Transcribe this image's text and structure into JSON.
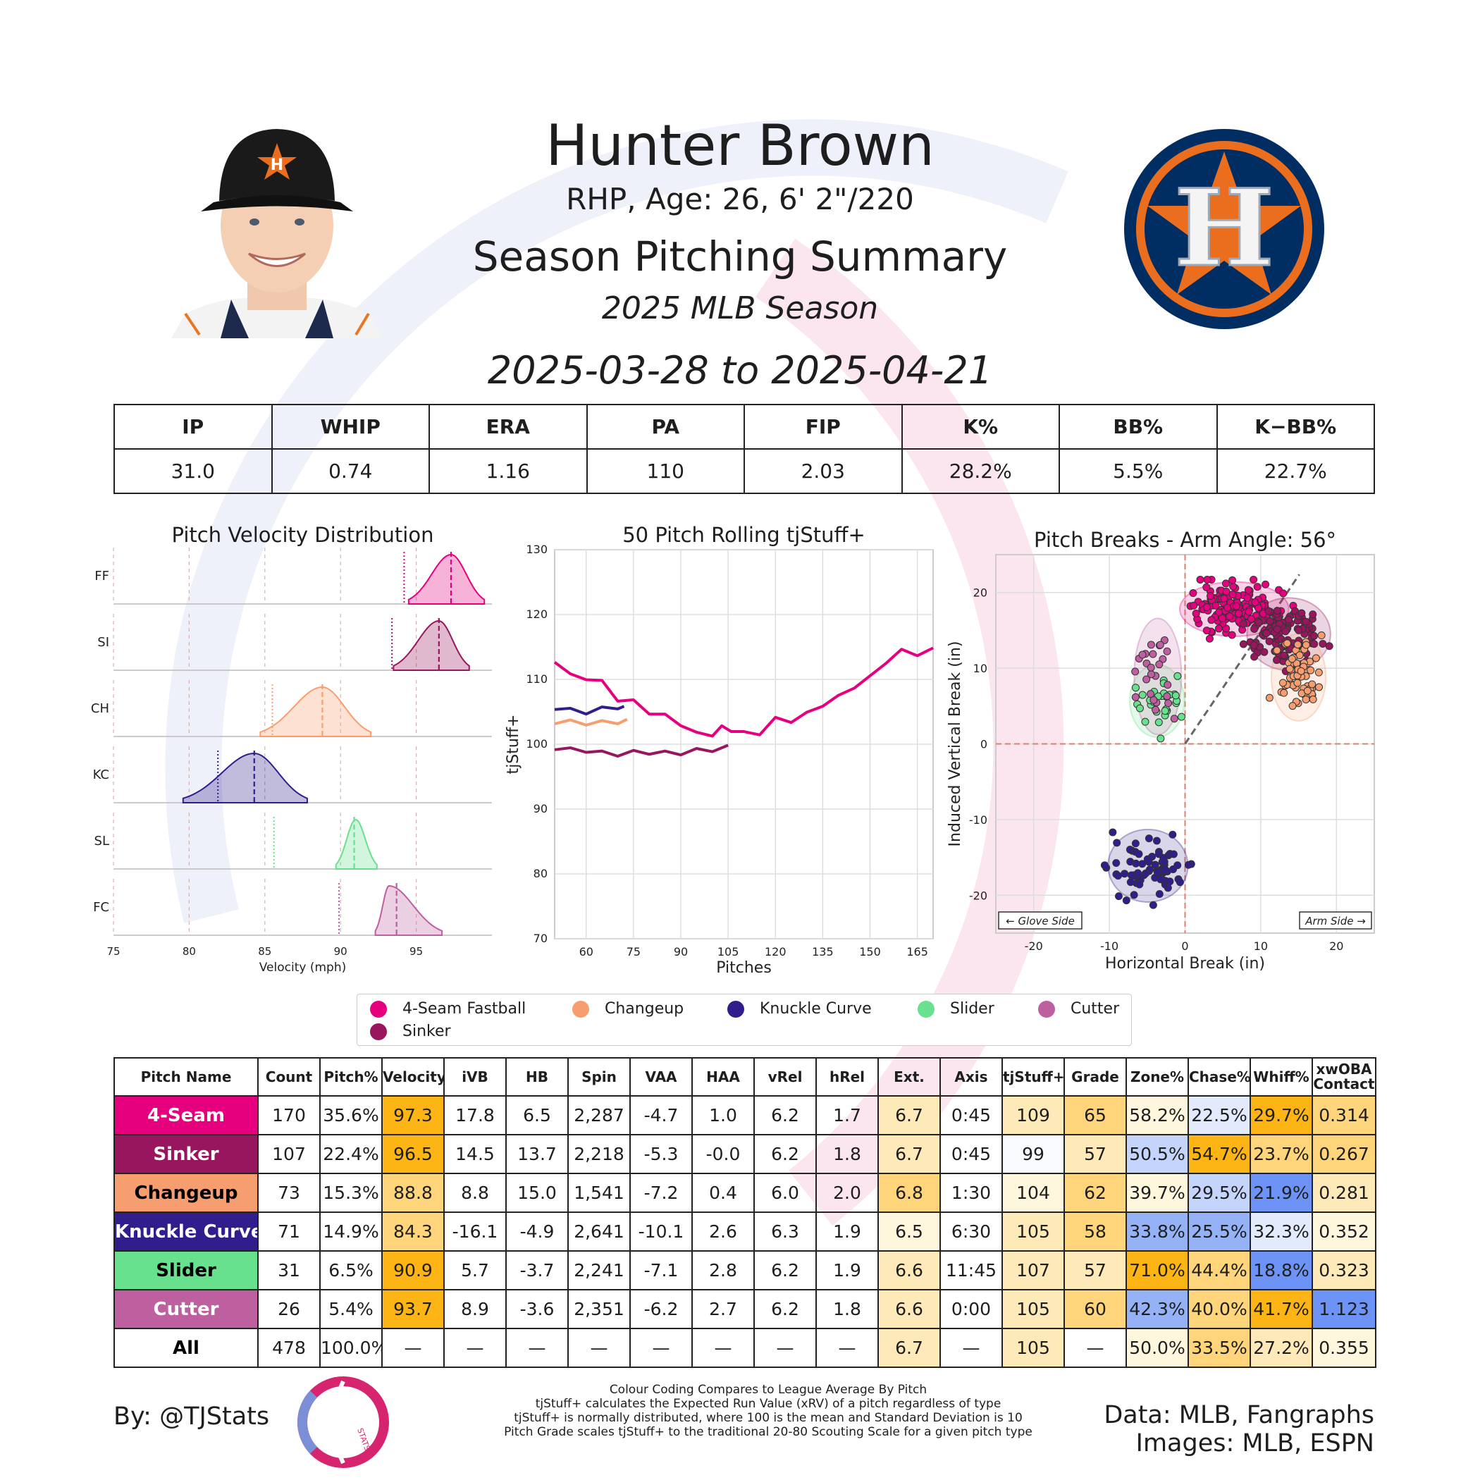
{
  "header": {
    "player_name": "Hunter Brown",
    "bio": "RHP, Age: 26, 6' 2\"/220",
    "title": "Season Pitching Summary",
    "season": "2025 MLB Season",
    "date_range": "2025-03-28 to 2025-04-21"
  },
  "stats_table": {
    "headers": [
      "IP",
      "WHIP",
      "ERA",
      "PA",
      "FIP",
      "K%",
      "BB%",
      "K−BB%"
    ],
    "values": [
      "31.0",
      "0.74",
      "1.16",
      "110",
      "2.03",
      "28.2%",
      "5.5%",
      "22.7%"
    ]
  },
  "colors": {
    "4-Seam Fastball": "#e6007e",
    "Sinker": "#98165d",
    "Changeup": "#f79e70",
    "Knuckle Curve": "#311d8b",
    "Slider": "#67e18d",
    "Cutter": "#be5fa0",
    "team_navy": "#002d62",
    "team_orange": "#eb6e1f",
    "cell_orange_strong": "#fdb515",
    "cell_orange_mid": "#fed57a",
    "cell_orange_light": "#fee9b8",
    "cell_cream": "#fff6de",
    "cell_blue_strong": "#6c93f5",
    "cell_blue_mid": "#95b2f7",
    "cell_blue_light": "#c4d4fa",
    "cell_blue_faint": "#e3eafc"
  },
  "legend": [
    "4-Seam Fastball",
    "Changeup",
    "Knuckle Curve",
    "Slider",
    "Cutter",
    "Sinker"
  ],
  "chart_data": [
    {
      "type": "area",
      "title": "Pitch Velocity Distribution",
      "xlabel": "Velocity (mph)",
      "xlim": [
        75,
        100
      ],
      "xticks": [
        75,
        80,
        85,
        90,
        95
      ],
      "series": [
        {
          "name": "FF",
          "label": "4-Seam Fastball",
          "min": 94.5,
          "max": 99.5,
          "mean": 97.3,
          "peak": 97.3,
          "league_avg": 94.2
        },
        {
          "name": "SI",
          "label": "Sinker",
          "min": 93.5,
          "max": 98.5,
          "mean": 96.5,
          "peak": 96.5,
          "league_avg": 93.4
        },
        {
          "name": "CH",
          "label": "Changeup",
          "min": 84.7,
          "max": 92.0,
          "mean": 88.8,
          "peak": 88.8,
          "league_avg": 85.5
        },
        {
          "name": "KC",
          "label": "Knuckle Curve",
          "min": 79.6,
          "max": 87.8,
          "mean": 84.3,
          "peak": 84.3,
          "league_avg": 81.9
        },
        {
          "name": "SL",
          "label": "Slider",
          "min": 89.7,
          "max": 92.4,
          "mean": 90.9,
          "peak": 91.0,
          "league_avg": 85.6
        },
        {
          "name": "FC",
          "label": "Cutter",
          "min": 92.3,
          "max": 96.7,
          "mean": 93.7,
          "peak": 93.2,
          "league_avg": 89.9
        }
      ]
    },
    {
      "type": "line",
      "title": "50 Pitch Rolling tjStuff+",
      "xlabel": "Pitches",
      "ylabel": "tjStuff+",
      "xlim": [
        50,
        170
      ],
      "ylim": [
        70,
        130
      ],
      "xticks": [
        60,
        75,
        90,
        105,
        120,
        135,
        150,
        165
      ],
      "yticks": [
        70,
        80,
        90,
        100,
        110,
        120,
        130
      ],
      "series": [
        {
          "name": "4-Seam Fastball",
          "x": [
            50,
            55,
            60,
            65,
            70,
            75,
            80,
            85,
            90,
            95,
            100,
            103,
            106,
            110,
            115,
            120,
            125,
            130,
            135,
            140,
            145,
            150,
            155,
            160,
            165,
            170
          ],
          "y": [
            113,
            110.5,
            110.3,
            109.5,
            107,
            106.5,
            105,
            104.3,
            103.2,
            101.5,
            101.6,
            102.5,
            102.3,
            101.6,
            101.8,
            103.8,
            103.7,
            104.6,
            106.2,
            107.2,
            109,
            110.2,
            112.8,
            114.3,
            114,
            114.5
          ]
        },
        {
          "name": "Changeup",
          "x": [
            50,
            55,
            60,
            65,
            70,
            73
          ],
          "y": [
            103.5,
            103.4,
            103.3,
            103.3,
            103.5,
            103.5
          ]
        },
        {
          "name": "Knuckle Curve",
          "x": [
            50,
            55,
            60,
            65,
            70,
            72
          ],
          "y": [
            105.7,
            105.2,
            105,
            105.4,
            105.8,
            105.5
          ]
        },
        {
          "name": "Sinker",
          "x": [
            50,
            55,
            60,
            65,
            70,
            75,
            80,
            85,
            90,
            95,
            100,
            105
          ],
          "y": [
            99.5,
            99.1,
            99.1,
            98.6,
            98.5,
            98.7,
            98.8,
            98.6,
            98.7,
            99.0,
            99.2,
            99.5
          ]
        }
      ]
    },
    {
      "type": "scatter",
      "title": "Pitch Breaks - Arm Angle: 56°",
      "xlabel": "Horizontal Break (in)",
      "ylabel": "Induced Vertical Break (in)",
      "xlim": [
        -25,
        25
      ],
      "ylim": [
        -25,
        25
      ],
      "xticks": [
        -20,
        -10,
        0,
        10,
        20
      ],
      "yticks": [
        -20,
        -10,
        0,
        10,
        20
      ],
      "arm_angle_deg": 56,
      "annotations": [
        "← Glove Side",
        "Arm Side →"
      ],
      "series": [
        {
          "name": "4-Seam Fastball",
          "center": [
            6.5,
            17.8
          ],
          "spread": [
            3.0,
            1.5
          ],
          "count": 170
        },
        {
          "name": "Sinker",
          "center": [
            13.7,
            14.5
          ],
          "spread": [
            2.3,
            2.0
          ],
          "count": 107
        },
        {
          "name": "Changeup",
          "center": [
            15.0,
            8.8
          ],
          "spread": [
            1.5,
            2.4
          ],
          "count": 73
        },
        {
          "name": "Knuckle Curve",
          "center": [
            -4.9,
            -16.1
          ],
          "spread": [
            2.2,
            2.0
          ],
          "count": 71
        },
        {
          "name": "Slider",
          "center": [
            -3.7,
            5.7
          ],
          "spread": [
            1.5,
            2.0
          ],
          "count": 31
        },
        {
          "name": "Cutter",
          "center": [
            -3.6,
            8.9
          ],
          "spread": [
            1.3,
            3.2
          ],
          "count": 26
        }
      ]
    },
    {
      "type": "table",
      "columns": [
        "Pitch Name",
        "Count",
        "Pitch%",
        "Velocity",
        "iVB",
        "HB",
        "Spin",
        "VAA",
        "HAA",
        "vRel",
        "hRel",
        "Ext.",
        "Axis",
        "tjStuff+",
        "Grade",
        "Zone%",
        "Chase%",
        "Whiff%",
        "xwOBA Contact"
      ],
      "rows": [
        [
          "4-Seam",
          "170",
          "35.6%",
          "97.3",
          "17.8",
          "6.5",
          "2,287",
          "-4.7",
          "1.0",
          "6.2",
          "1.7",
          "6.7",
          "0:45",
          "109",
          "65",
          "58.2%",
          "22.5%",
          "29.7%",
          "0.314"
        ],
        [
          "Sinker",
          "107",
          "22.4%",
          "96.5",
          "14.5",
          "13.7",
          "2,218",
          "-5.3",
          "-0.0",
          "6.2",
          "1.8",
          "6.7",
          "0:45",
          "99",
          "57",
          "50.5%",
          "54.7%",
          "23.7%",
          "0.267"
        ],
        [
          "Changeup",
          "73",
          "15.3%",
          "88.8",
          "8.8",
          "15.0",
          "1,541",
          "-7.2",
          "0.4",
          "6.0",
          "2.0",
          "6.8",
          "1:30",
          "104",
          "62",
          "39.7%",
          "29.5%",
          "21.9%",
          "0.281"
        ],
        [
          "Knuckle Curve",
          "71",
          "14.9%",
          "84.3",
          "-16.1",
          "-4.9",
          "2,641",
          "-10.1",
          "2.6",
          "6.3",
          "1.9",
          "6.5",
          "6:30",
          "105",
          "58",
          "33.8%",
          "25.5%",
          "32.3%",
          "0.352"
        ],
        [
          "Slider",
          "31",
          "6.5%",
          "90.9",
          "5.7",
          "-3.7",
          "2,241",
          "-7.1",
          "2.8",
          "6.2",
          "1.9",
          "6.6",
          "11:45",
          "107",
          "57",
          "71.0%",
          "44.4%",
          "18.8%",
          "0.323"
        ],
        [
          "Cutter",
          "26",
          "5.4%",
          "93.7",
          "8.9",
          "-3.6",
          "2,351",
          "-6.2",
          "2.7",
          "6.2",
          "1.8",
          "6.6",
          "0:00",
          "105",
          "60",
          "42.3%",
          "40.0%",
          "41.7%",
          "1.123"
        ],
        [
          "All",
          "478",
          "100.0%",
          "—",
          "—",
          "—",
          "—",
          "—",
          "—",
          "—",
          "—",
          "6.7",
          "—",
          "105",
          "—",
          "50.0%",
          "33.5%",
          "27.2%",
          "0.355"
        ]
      ],
      "row_colors": [
        "#e6007e",
        "#98165d",
        "#f79e70",
        "#311d8b",
        "#67e18d",
        "#be5fa0",
        "#ffffff"
      ],
      "row_text_colors": [
        "#ffffff",
        "#ffffff",
        "#000000",
        "#ffffff",
        "#000000",
        "#ffffff",
        "#000000"
      ],
      "cell_shades": [
        [
          "",
          "",
          "",
          "s",
          "",
          "",
          "",
          "",
          "",
          "",
          "",
          "l",
          "",
          "l",
          "m",
          "c",
          "bf",
          "s",
          "m"
        ],
        [
          "",
          "",
          "",
          "s",
          "",
          "",
          "",
          "",
          "",
          "",
          "",
          "l",
          "",
          "w",
          "l",
          "bl",
          "s",
          "m",
          "m"
        ],
        [
          "",
          "",
          "",
          "m",
          "",
          "",
          "",
          "",
          "",
          "",
          "",
          "m",
          "",
          "c",
          "m",
          "c",
          "bl",
          "bs",
          "l"
        ],
        [
          "",
          "",
          "",
          "m",
          "",
          "",
          "",
          "",
          "",
          "",
          "",
          "c",
          "",
          "l",
          "m",
          "bm",
          "bm",
          "bf",
          "c"
        ],
        [
          "",
          "",
          "",
          "s",
          "",
          "",
          "",
          "",
          "",
          "",
          "",
          "l",
          "",
          "l",
          "l",
          "s",
          "m",
          "bs",
          "l"
        ],
        [
          "",
          "",
          "",
          "s",
          "",
          "",
          "",
          "",
          "",
          "",
          "",
          "l",
          "",
          "l",
          "m",
          "bm",
          "m",
          "s",
          "bs"
        ],
        [
          "",
          "",
          "",
          "",
          "",
          "",
          "",
          "",
          "",
          "",
          "",
          "l",
          "",
          "l",
          "",
          "c",
          "m",
          "l",
          "c"
        ]
      ]
    }
  ],
  "footer": {
    "byline": "By: @TJStats",
    "notes": [
      "Colour Coding Compares to League Average By Pitch",
      "tjStuff+ calculates the Expected Run Value (xRV) of a pitch regardless of type",
      "tjStuff+ is normally distributed, where 100 is the mean and Standard Deviation is 10",
      "Pitch Grade scales tjStuff+ to the traditional 20-80 Scouting Scale for a given pitch type"
    ],
    "credits": [
      "Data: MLB, Fangraphs",
      "Images: MLB, ESPN"
    ],
    "logo_text": "STATS",
    "team_logo_letter": "H"
  }
}
